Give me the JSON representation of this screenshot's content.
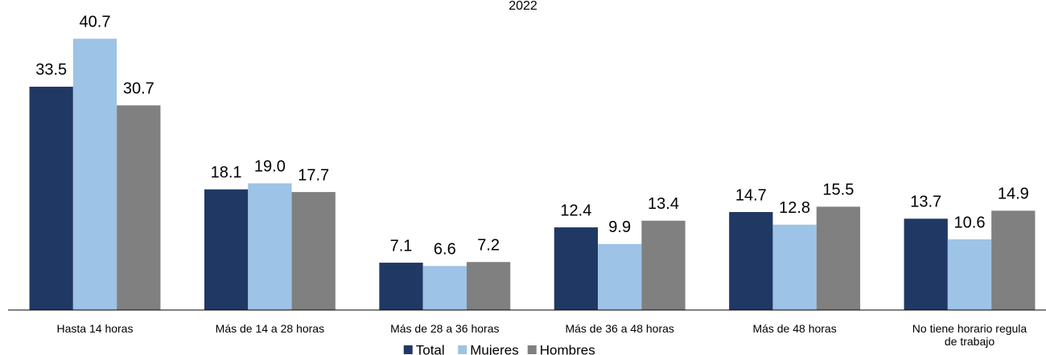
{
  "chart_data": {
    "type": "bar",
    "title": "2022",
    "categories": [
      "Hasta 14 horas",
      "Más de 14 a 28 horas",
      "Más de 28 a 36 horas",
      "Más de 36 a 48 horas",
      "Más de 48 horas",
      "No tiene horario regula de trabajo"
    ],
    "series": [
      {
        "name": "Total",
        "color": "#203864",
        "values": [
          33.5,
          18.1,
          7.1,
          12.4,
          14.7,
          13.7
        ],
        "value_labels": [
          "33.5",
          "18.1",
          "7.1",
          "12.4",
          "14.7",
          "13.7"
        ]
      },
      {
        "name": "Mujeres",
        "color": "#9dc3e6",
        "values": [
          40.7,
          19,
          6.6,
          9.9,
          12.8,
          10.6
        ],
        "value_labels": [
          "40.7",
          "19.0",
          "6.6",
          "9.9",
          "12.8",
          "10.6"
        ]
      },
      {
        "name": "Hombres",
        "color": "#808080",
        "values": [
          30.7,
          17.7,
          7.2,
          13.4,
          15.5,
          14.9
        ],
        "value_labels": [
          "30.7",
          "17.7",
          "7.2",
          "13.4",
          "15.5",
          "14.9"
        ]
      }
    ],
    "ylim": [
      0,
      45
    ],
    "legend": "bottom"
  }
}
